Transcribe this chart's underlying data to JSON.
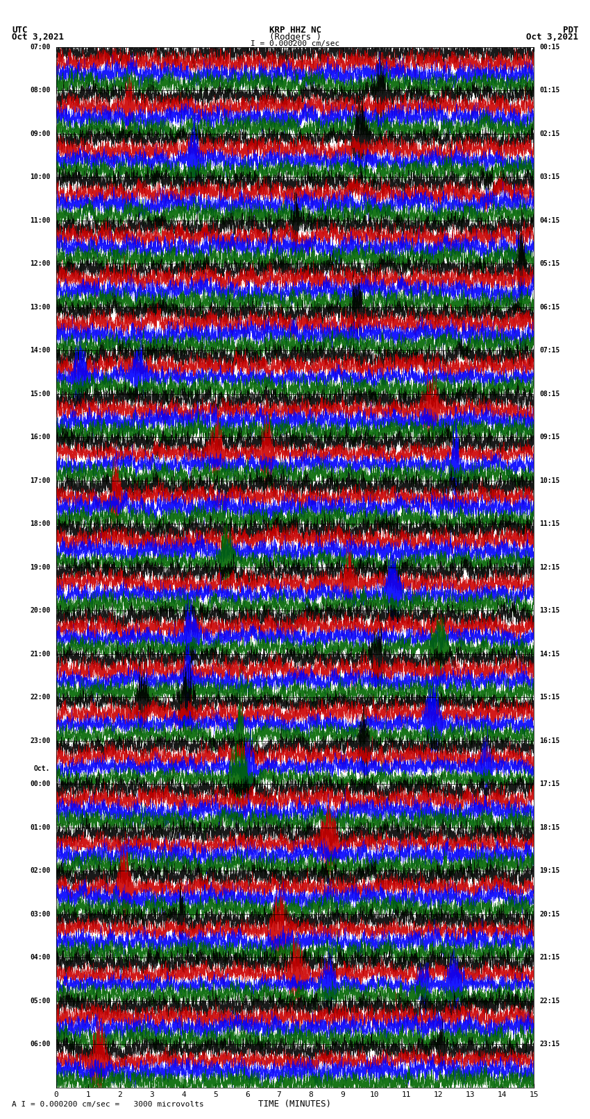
{
  "title_line1": "KRP HHZ NC",
  "title_line2": "(Rodgers )",
  "scale_text": "I = 0.000200 cm/sec",
  "utc_label": "UTC",
  "utc_date": "Oct 3,2021",
  "pdt_label": "PDT",
  "pdt_date": "Oct 3,2021",
  "xlabel": "TIME (MINUTES)",
  "footer_text": "A I = 0.000200 cm/sec =   3000 microvolts",
  "left_times": [
    "07:00",
    "08:00",
    "09:00",
    "10:00",
    "11:00",
    "12:00",
    "13:00",
    "14:00",
    "15:00",
    "16:00",
    "17:00",
    "18:00",
    "19:00",
    "20:00",
    "21:00",
    "22:00",
    "23:00",
    "00:00",
    "01:00",
    "02:00",
    "03:00",
    "04:00",
    "05:00",
    "06:00"
  ],
  "right_times": [
    "00:15",
    "01:15",
    "02:15",
    "03:15",
    "04:15",
    "05:15",
    "06:15",
    "07:15",
    "08:15",
    "09:15",
    "10:15",
    "11:15",
    "12:15",
    "13:15",
    "14:15",
    "15:15",
    "16:15",
    "17:15",
    "18:15",
    "19:15",
    "20:15",
    "21:15",
    "22:15",
    "23:15"
  ],
  "oct_label_left": "Oct.",
  "n_rows": 24,
  "n_traces_per_row": 4,
  "x_tick_max": 15,
  "colors": [
    "black",
    "#cc0000",
    "blue",
    "#006600"
  ],
  "background": "white",
  "seed": 42
}
